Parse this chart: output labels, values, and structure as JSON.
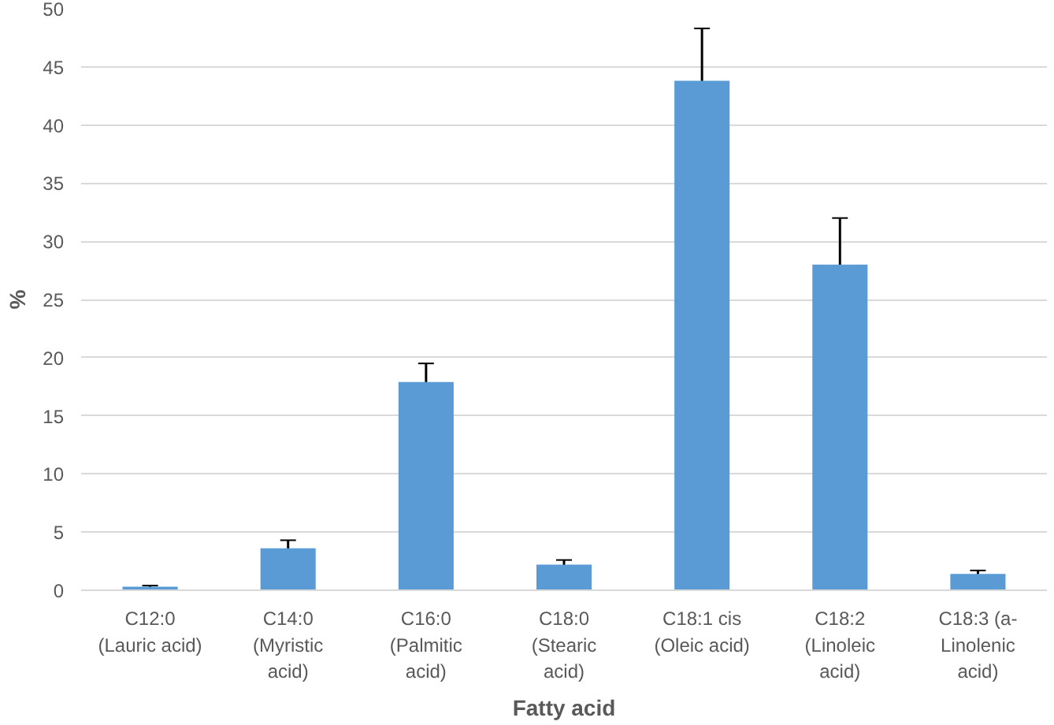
{
  "chart_data": {
    "type": "bar",
    "xlabel": "Fatty acid",
    "ylabel": "%",
    "categories": [
      "C12:0\n(Lauric acid)",
      "C14:0\n(Myristic\nacid)",
      "C16:0\n(Palmitic\nacid)",
      "C18:0\n(Stearic\nacid)",
      "C18:1 cis\n(Oleic acid)",
      "C18:2\n(Linoleic\nacid)",
      "C18:3 (a-\nLinolenic\nacid)"
    ],
    "values": [
      0.3,
      3.6,
      17.9,
      2.2,
      43.8,
      28,
      1.4
    ],
    "errors": [
      0.1,
      0.7,
      1.6,
      0.4,
      4.5,
      4,
      0.3
    ],
    "color": "#5b9bd5",
    "ylim": [
      0,
      50
    ],
    "yticks": [
      0,
      5,
      10,
      15,
      20,
      25,
      30,
      35,
      40,
      45,
      50
    ],
    "grid": "y"
  }
}
